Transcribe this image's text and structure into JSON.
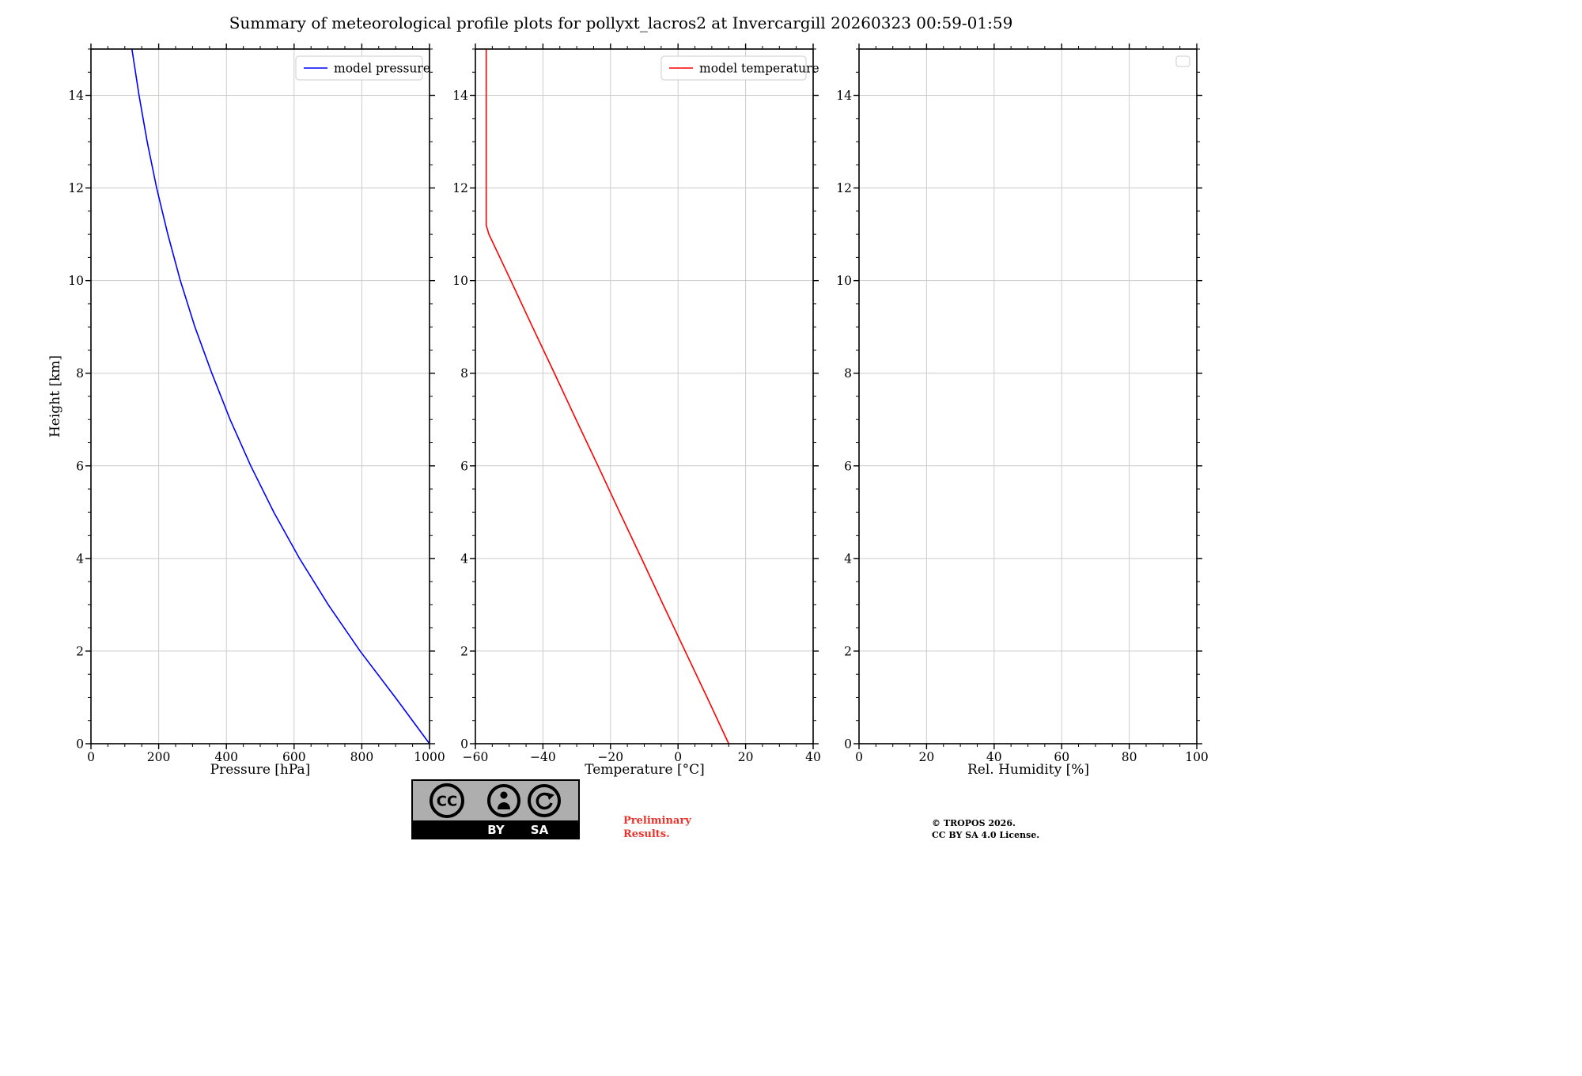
{
  "title": "Summary of meteorological profile plots for pollyxt_lacros2 at Invercargill 20260323 00:59-01:59",
  "ylabel": "Height [km]",
  "colors": {
    "pressure": "#0000ff",
    "temperature": "#ff0000",
    "grid": "#cccccc",
    "spine": "#000000",
    "preliminary_red": "#e9332c",
    "badge_gray": "#aeaeae"
  },
  "chart_data": [
    {
      "type": "line",
      "xlabel": "Pressure [hPa]",
      "ylabel": "Height [km]",
      "xlim": [
        0,
        1000
      ],
      "xticks": [
        0,
        200,
        400,
        600,
        800,
        1000
      ],
      "ylim": [
        0,
        15
      ],
      "yticks": [
        0,
        2,
        4,
        6,
        8,
        10,
        12,
        14
      ],
      "grid": true,
      "legend_position": "upper right",
      "series": [
        {
          "name": "model pressure",
          "color": "#0000ff",
          "y": [
            0,
            1,
            2,
            3,
            4,
            5,
            6,
            7,
            8,
            9,
            10,
            11,
            12,
            13,
            14,
            15
          ],
          "x": [
            1000,
            899,
            795,
            701,
            616,
            540,
            472,
            411,
            357,
            307,
            264,
            227,
            194,
            166,
            142,
            121
          ]
        }
      ]
    },
    {
      "type": "line",
      "xlabel": "Temperature [°C]",
      "ylabel": "Height [km]",
      "xlim": [
        -60,
        40
      ],
      "xticks": [
        -60,
        -40,
        -20,
        0,
        20,
        40
      ],
      "ylim": [
        0,
        15
      ],
      "yticks": [
        0,
        2,
        4,
        6,
        8,
        10,
        12,
        14
      ],
      "grid": true,
      "legend_position": "upper right",
      "series": [
        {
          "name": "model temperature",
          "color": "#ff0000",
          "y": [
            0,
            1,
            2,
            3,
            4,
            5,
            6,
            7,
            8,
            9,
            10,
            11,
            11.2,
            12,
            13,
            14,
            15
          ],
          "x": [
            15,
            8.6,
            2.1,
            -4.4,
            -10.8,
            -17.3,
            -23.7,
            -30.2,
            -36.6,
            -43.1,
            -49.5,
            -56,
            -56.8,
            -56.8,
            -56.8,
            -56.8,
            -56.8
          ]
        }
      ]
    },
    {
      "type": "line",
      "xlabel": "Rel. Humidity [%]",
      "ylabel": "Height [km]",
      "xlim": [
        0,
        100
      ],
      "xticks": [
        0,
        20,
        40,
        60,
        80,
        100
      ],
      "ylim": [
        0,
        15
      ],
      "yticks": [
        0,
        2,
        4,
        6,
        8,
        10,
        12,
        14
      ],
      "grid": true,
      "legend_position": "upper right",
      "legend_empty": true,
      "series": []
    }
  ],
  "footer": {
    "cc_text": "CC",
    "badge_by": "BY",
    "badge_sa": "SA",
    "preliminary_line1": "Preliminary",
    "preliminary_line2": "Results.",
    "tropos_line1": "© TROPOS 2026.",
    "tropos_line2": "CC BY SA 4.0 License."
  }
}
